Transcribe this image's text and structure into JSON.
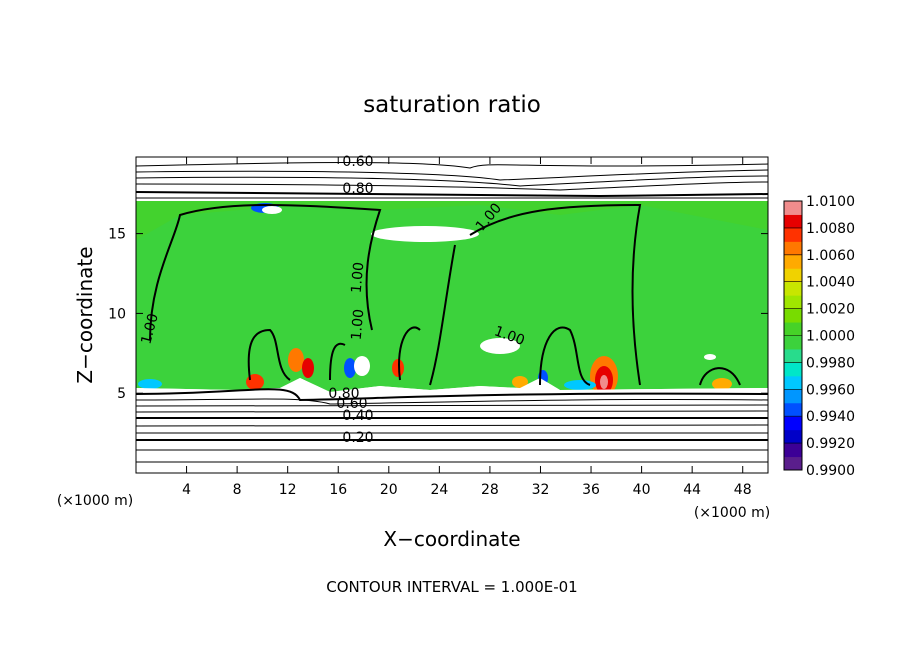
{
  "chart_data": {
    "type": "contour",
    "title": "saturation ratio",
    "x_label": "X−coordinate",
    "y_label": "Z−coordinate",
    "x_unit_label": "(×1000 m)",
    "footer": "CONTOUR INTERVAL = 1.000E-01",
    "xlim": [
      0,
      50
    ],
    "xticks": [
      4,
      8,
      12,
      16,
      20,
      24,
      28,
      32,
      36,
      40,
      44,
      48
    ],
    "ylim": [
      0,
      19.8
    ],
    "yticks": [
      5,
      10,
      15
    ],
    "colorbar_lim": [
      0.99,
      1.01
    ],
    "colorbar_ticks": [
      {
        "value": 1.01,
        "label": "1.0100"
      },
      {
        "value": 1.008,
        "label": "1.0080"
      },
      {
        "value": 1.006,
        "label": "1.0060"
      },
      {
        "value": 1.004,
        "label": "1.0040"
      },
      {
        "value": 1.002,
        "label": "1.0020"
      },
      {
        "value": 1.0,
        "label": "1.0000"
      },
      {
        "value": 0.998,
        "label": "0.9980"
      },
      {
        "value": 0.996,
        "label": "0.9960"
      },
      {
        "value": 0.994,
        "label": "0.9940"
      },
      {
        "value": 0.992,
        "label": "0.9920"
      },
      {
        "value": 0.99,
        "label": "0.9900"
      }
    ],
    "colorbar_colors": [
      "#5a1e8c",
      "#3c0096",
      "#0000c8",
      "#0000ff",
      "#0050ff",
      "#0096ff",
      "#00c8ff",
      "#00e6c8",
      "#28dc8c",
      "#3cd23c",
      "#46d228",
      "#78dc00",
      "#a0e600",
      "#c8e600",
      "#f0d200",
      "#ffaa00",
      "#ff7800",
      "#ff3200",
      "#e60000",
      "#f08c8c"
    ],
    "contour_labels": [
      "0.60",
      "0.80",
      "1.00",
      "1.00",
      "1.00",
      "1.00",
      "1.00",
      "0.80",
      "0.60",
      "0.40",
      "0.20"
    ]
  }
}
